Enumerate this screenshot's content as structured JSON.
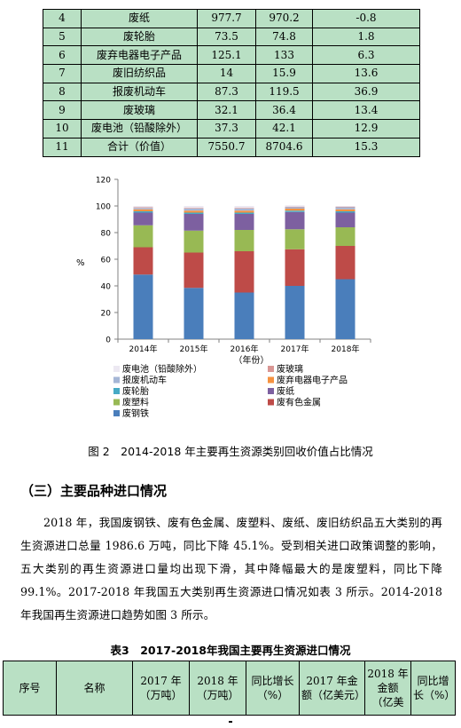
{
  "table_top": {
    "rows": [
      {
        "no": "4",
        "name": "废纸",
        "v2017": "977.7",
        "v2018": "970.2",
        "growth": "-0.8"
      },
      {
        "no": "5",
        "name": "废轮胎",
        "v2017": "73.5",
        "v2018": "74.8",
        "growth": "1.8"
      },
      {
        "no": "6",
        "name": "废弃电器电子产品",
        "v2017": "125.1",
        "v2018": "133",
        "growth": "6.3"
      },
      {
        "no": "7",
        "name": "废旧纺织品",
        "v2017": "14",
        "v2018": "15.9",
        "growth": "13.6"
      },
      {
        "no": "8",
        "name": "报废机动车",
        "v2017": "87.3",
        "v2018": "119.5",
        "growth": "36.9"
      },
      {
        "no": "9",
        "name": "废玻璃",
        "v2017": "32.1",
        "v2018": "36.4",
        "growth": "13.4"
      },
      {
        "no": "10",
        "name": "废电池（铅酸除外）",
        "v2017": "37.3",
        "v2018": "42.1",
        "growth": "12.9"
      },
      {
        "no": "11",
        "name": "合计（价值）",
        "v2017": "7550.7",
        "v2018": "8704.6",
        "growth": "15.3"
      }
    ]
  },
  "chart_data": {
    "type": "bar",
    "stacked": true,
    "categories": [
      "2014年",
      "2015年",
      "2016年",
      "2017年",
      "2018年"
    ],
    "xlabel": "（年份）",
    "ylabel": "%",
    "ylim": [
      0,
      120
    ],
    "yticks": [
      "0",
      "20",
      "40",
      "60",
      "80",
      "100",
      "120"
    ],
    "series": [
      {
        "name": "废钢铁",
        "color": "#4a7ebb",
        "values": [
          48.5,
          38.5,
          35.0,
          40.0,
          45.0
        ]
      },
      {
        "name": "废有色金属",
        "color": "#be4b48",
        "values": [
          20.5,
          26.5,
          31.0,
          27.5,
          25.0
        ]
      },
      {
        "name": "废塑料",
        "color": "#98b954",
        "values": [
          16.5,
          16.5,
          16.0,
          15.0,
          14.0
        ]
      },
      {
        "name": "废纸",
        "color": "#7d60a0",
        "values": [
          9.5,
          12.5,
          12.0,
          13.0,
          11.0
        ]
      },
      {
        "name": "废轮胎",
        "color": "#46aac5",
        "values": [
          1.0,
          1.0,
          1.0,
          1.0,
          1.0
        ]
      },
      {
        "name": "废弃电器电子产品",
        "color": "#f69240",
        "values": [
          1.5,
          1.5,
          1.5,
          1.5,
          1.5
        ]
      },
      {
        "name": "报废机动车",
        "color": "#a5b6d6",
        "values": [
          1.0,
          1.5,
          1.5,
          1.0,
          1.5
        ]
      },
      {
        "name": "废玻璃",
        "color": "#d99694",
        "values": [
          0.5,
          0.5,
          0.5,
          0.5,
          0.5
        ]
      },
      {
        "name": "废电池（铅酸除外）",
        "color": "#c3d69b",
        "values": [
          1.0,
          1.5,
          1.5,
          1.0,
          0.5
        ]
      }
    ],
    "legend_placement": "bottom",
    "grid": false
  },
  "figure_caption": "图 2　2014-2018 年主要再生资源类别回收价值占比情况",
  "section_title": "（三）主要品种进口情况",
  "paragraph": "2018 年，我国废钢铁、废有色金属、废塑料、废纸、废旧纺织品五大类别的再生资源进口总量 1986.6 万吨，同比下降 45.1%。受到相关进口政策调整的影响，五大类别的再生资源进口量均出现下滑，其中降幅最大的是废塑料，同比下降 99.1%。2017-2018 年我国五大类别再生资源进口情况如表 3 所示。2014-2018 年我国再生资源进口趋势如图 3 所示。",
  "table3": {
    "caption": "表3　2017-2018年我国主要再生资源进口情况",
    "headers": [
      "序号",
      "名称",
      "2017 年（万吨）",
      "2018 年（万吨）",
      "同比增长（%）",
      "2017 年金额（亿美元）",
      "2018 年金额（亿美",
      "同比增长（%）"
    ]
  }
}
